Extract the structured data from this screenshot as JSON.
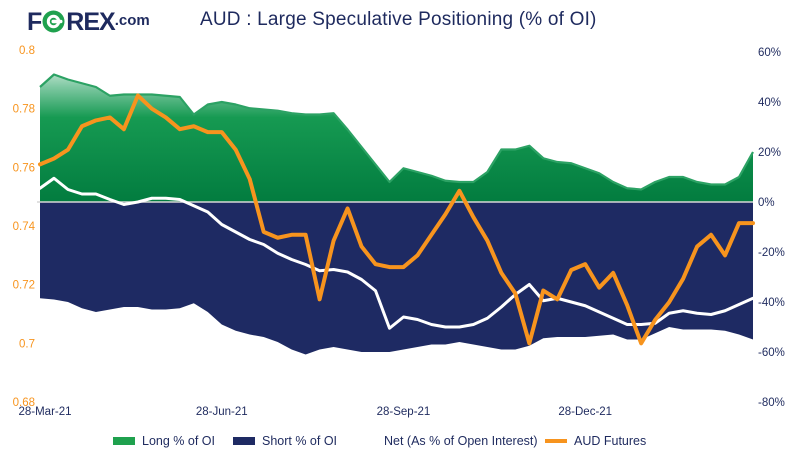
{
  "logo": {
    "part1": "F",
    "part2": "REX",
    "suffix": ".com",
    "circle_color": "#1fa14e",
    "text_color": "#1e2a5e"
  },
  "title": "AUD : Large Speculative Positioning (% of OI)",
  "colors": {
    "navy": "#1e2a63",
    "navy_text": "#1e2a5e",
    "orange": "#f7941e",
    "green_solid": "#15994f",
    "green_edge": "#2ca264",
    "green_grad_top": "#b9e1cc",
    "green_grad_mid": "#169a52",
    "green_grad_bottom": "#027c3f",
    "zero_line": "#d6d6d6",
    "white": "#ffffff"
  },
  "chart_data": {
    "type": "area",
    "subtype": "combo area+line, dual axis",
    "title": "AUD : Large Speculative Positioning (% of OI)",
    "x_axis": {
      "description": "weekly data starting 28-Mar-21",
      "tick_labels": [
        "28-Mar-21",
        "28-Jun-21",
        "28-Sep-21",
        "28-Dec-21"
      ],
      "tick_week_indices": [
        0,
        13,
        26,
        39
      ],
      "n_points": 52
    },
    "left_axis": {
      "title": "AUD futures price",
      "tick_labels": [
        "0.8",
        "0.78",
        "0.76",
        "0.74",
        "0.72",
        "0.7",
        "0.68"
      ],
      "min": 0.68,
      "max": 0.8,
      "color": "#f7941e"
    },
    "right_axis": {
      "title": "% of Open Interest",
      "tick_labels": [
        "60%",
        "40%",
        "20%",
        "0%",
        "-20%",
        "-40%",
        "-60%",
        "-80%"
      ],
      "min": -80,
      "max": 60,
      "color": "#1e2a5e"
    },
    "grid": "off",
    "legend_position": "bottom",
    "series": [
      {
        "name": "Long % of OI",
        "type": "area",
        "axis": "right",
        "color": "#15994f",
        "values": [
          46,
          51,
          49,
          47.5,
          46,
          42.5,
          43,
          43,
          43,
          42.5,
          42,
          35,
          39,
          40,
          39,
          37.5,
          37,
          36.5,
          35.5,
          35,
          35,
          35.5,
          29,
          22,
          15,
          8,
          13.5,
          12,
          10.5,
          8.5,
          8,
          8,
          12,
          21,
          21,
          22.5,
          17.5,
          16,
          15.5,
          13.5,
          11.5,
          8,
          5.5,
          5,
          8,
          10,
          10,
          8,
          7,
          7,
          10,
          20
        ]
      },
      {
        "name": "Short % of OI",
        "type": "area",
        "axis": "right",
        "color": "#1e2a63",
        "values": [
          -38.5,
          -39,
          -40,
          -42.5,
          -44,
          -43,
          -42,
          -42,
          -43,
          -43,
          -42.5,
          -40.5,
          -44,
          -49,
          -51.5,
          -53,
          -54,
          -56,
          -59,
          -61,
          -59,
          -58,
          -59,
          -60,
          -60,
          -60,
          -59,
          -58,
          -57,
          -57,
          -56,
          -57,
          -58,
          -59,
          -59,
          -57.5,
          -54.5,
          -54,
          -54,
          -54,
          -53.5,
          -53,
          -55,
          -55,
          -52.5,
          -50,
          -51,
          -51,
          -51,
          -51.5,
          -53,
          -55
        ]
      },
      {
        "name": "Net (As % of Open Interest)",
        "type": "line",
        "axis": "right",
        "color": "#ffffff",
        "values": [
          5.5,
          9.5,
          5,
          3.2,
          3.2,
          1,
          -1,
          0,
          1.5,
          1.5,
          1,
          -1.5,
          -4,
          -9,
          -12,
          -15,
          -17,
          -20.5,
          -23,
          -25,
          -27.5,
          -27,
          -28,
          -31,
          -35.5,
          -50.5,
          -46,
          -47,
          -49,
          -50,
          -50,
          -49,
          -46.5,
          -42,
          -37,
          -33,
          -39.5,
          -38.5,
          -40,
          -41.5,
          -44,
          -46.5,
          -49,
          -49,
          -48.5,
          -44.5,
          -43.5,
          -44.5,
          -45,
          -43.5,
          -41,
          -38.5
        ]
      },
      {
        "name": "AUD Futures",
        "type": "line",
        "axis": "left",
        "color": "#f7941e",
        "values": [
          0.761,
          0.763,
          0.766,
          0.774,
          0.776,
          0.777,
          0.773,
          0.7845,
          0.78,
          0.777,
          0.773,
          0.774,
          0.772,
          0.772,
          0.766,
          0.756,
          0.738,
          0.736,
          0.737,
          0.737,
          0.715,
          0.735,
          0.746,
          0.733,
          0.727,
          0.726,
          0.726,
          0.73,
          0.737,
          0.744,
          0.752,
          0.743,
          0.735,
          0.724,
          0.717,
          0.7,
          0.718,
          0.715,
          0.725,
          0.727,
          0.719,
          0.724,
          0.713,
          0.7,
          0.708,
          0.714,
          0.722,
          0.733,
          0.737,
          0.73,
          0.741,
          0.741
        ]
      }
    ],
    "legend": [
      {
        "label": "Long % of OI",
        "swatch": "bar",
        "color": "#1fa14e",
        "x": 113
      },
      {
        "label": "Short % of OI",
        "swatch": "bar",
        "color": "#1e2a63",
        "x": 233
      },
      {
        "label": "Net (As % of Open Interest)",
        "swatch": "line",
        "color": "#ffffff",
        "x": 355
      },
      {
        "label": "AUD Futures",
        "swatch": "line",
        "color": "#f7941e",
        "x": 545
      }
    ]
  }
}
